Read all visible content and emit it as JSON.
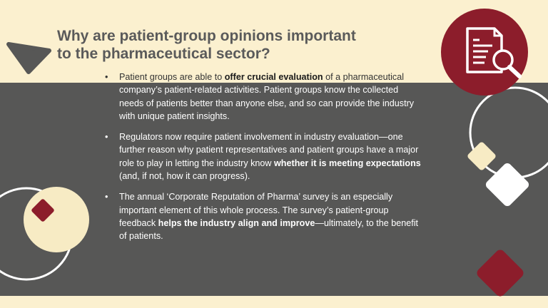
{
  "title": {
    "line1": "Why are patient-group opinions important",
    "line2": "to the pharmaceutical sector?"
  },
  "bullets": [
    {
      "lines": [
        {
          "pre": "Patient groups are able to ",
          "bold": "offer crucial evaluation",
          "post": " of a pharmaceutical"
        },
        {
          "text": "company’s patient-related activities. Patient groups know the collected"
        },
        {
          "text": "needs of patients better than anyone else, and so can provide the industry"
        },
        {
          "text": "with unique patient insights."
        }
      ]
    },
    {
      "lines": [
        {
          "text": "Regulators now require patient involvement in industry evaluation—one"
        },
        {
          "text": "further reason why patient representatives and patient groups have a major"
        },
        {
          "pre": "role to play in letting the industry know ",
          "bold": "whether it is meeting expectations"
        },
        {
          "text": "(and, if not, how it can progress)."
        }
      ]
    },
    {
      "lines": [
        {
          "text": "The annual ‘Corporate Reputation of Pharma’ survey is an especially"
        },
        {
          "text": "important element of this whole process. The survey’s patient-group"
        },
        {
          "pre": "feedback ",
          "bold": "helps the industry align and improve",
          "post": "—ultimately, to the benefit"
        },
        {
          "text": "of patients."
        }
      ]
    }
  ],
  "bullet_symbol": "•",
  "icons": {
    "header": "document-magnifier-icon",
    "pointer": "triangle-pointer-icon"
  },
  "colors": {
    "background": "#fbf0cf",
    "panel": "#575756",
    "accent": "#8c1d2b",
    "title": "#5a5a5a",
    "cream": "#f7ebc4"
  }
}
